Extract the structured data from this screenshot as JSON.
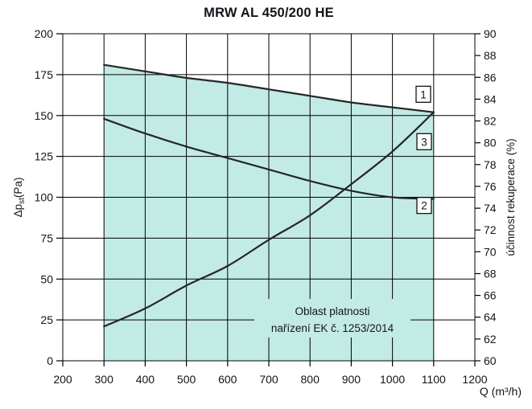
{
  "chart_data": {
    "type": "line",
    "title": "MRW AL 450/200 HE",
    "grid": true,
    "x_axis": {
      "label": "Q (m³/h)",
      "min": 200,
      "max": 1200,
      "ticks": [
        200,
        300,
        400,
        500,
        600,
        700,
        800,
        900,
        1000,
        1100,
        1200
      ]
    },
    "y_axis_left": {
      "label": "Δpst(Pa)",
      "label_parts": {
        "pre": "Δp",
        "sub": "st",
        "post": "(Pa)"
      },
      "min": 0,
      "max": 200,
      "ticks": [
        200,
        175,
        150,
        125,
        100,
        75,
        50,
        25,
        0
      ]
    },
    "y_axis_right": {
      "label": "účinnost rekuperace (%)",
      "min": 60,
      "max": 90,
      "ticks": [
        90,
        88,
        86,
        84,
        82,
        80,
        78,
        76,
        74,
        72,
        70,
        68,
        66,
        64,
        62,
        60
      ]
    },
    "x": [
      300,
      400,
      500,
      600,
      700,
      800,
      900,
      1000,
      1100
    ],
    "series": [
      {
        "name": "1",
        "label": "1",
        "axis_hint": "right (účinnost rekuperace %)",
        "y_pa": [
          181,
          177,
          173,
          170,
          166,
          162,
          158,
          155,
          152
        ],
        "y_pct": [
          87.2,
          86.6,
          86.0,
          85.5,
          84.9,
          84.3,
          83.7,
          83.3,
          82.8
        ],
        "label_pos": {
          "q": 1075,
          "pa": 163
        }
      },
      {
        "name": "2",
        "label": "2",
        "axis_hint": "right (účinnost rekuperace %)",
        "y_pa": [
          148,
          139,
          131,
          124,
          117,
          110,
          104,
          100,
          99
        ],
        "y_pct": [
          82.2,
          80.9,
          79.7,
          78.6,
          77.6,
          76.5,
          75.6,
          75.0,
          74.9
        ],
        "label_pos": {
          "q": 1077,
          "pa": 95
        }
      },
      {
        "name": "3",
        "label": "3",
        "axis_hint": "left (Δpst Pa)",
        "y_pa": [
          21,
          32,
          46,
          58,
          74,
          89,
          108,
          128,
          152
        ],
        "label_pos": {
          "q": 1077,
          "pa": 134
        }
      }
    ],
    "shaded_region": {
      "x_min": 300,
      "x_max": 1100,
      "top_series": "1",
      "annotation_line1": "Oblast platnosti",
      "annotation_line2": "nařízení EK č. 1253/2014"
    },
    "colors": {
      "fill": "#c2ebe6",
      "curve": "#262626",
      "grid": "#000000",
      "text": "#14141c",
      "background": "#ffffff",
      "label_box_fill": "#ffffff"
    }
  }
}
